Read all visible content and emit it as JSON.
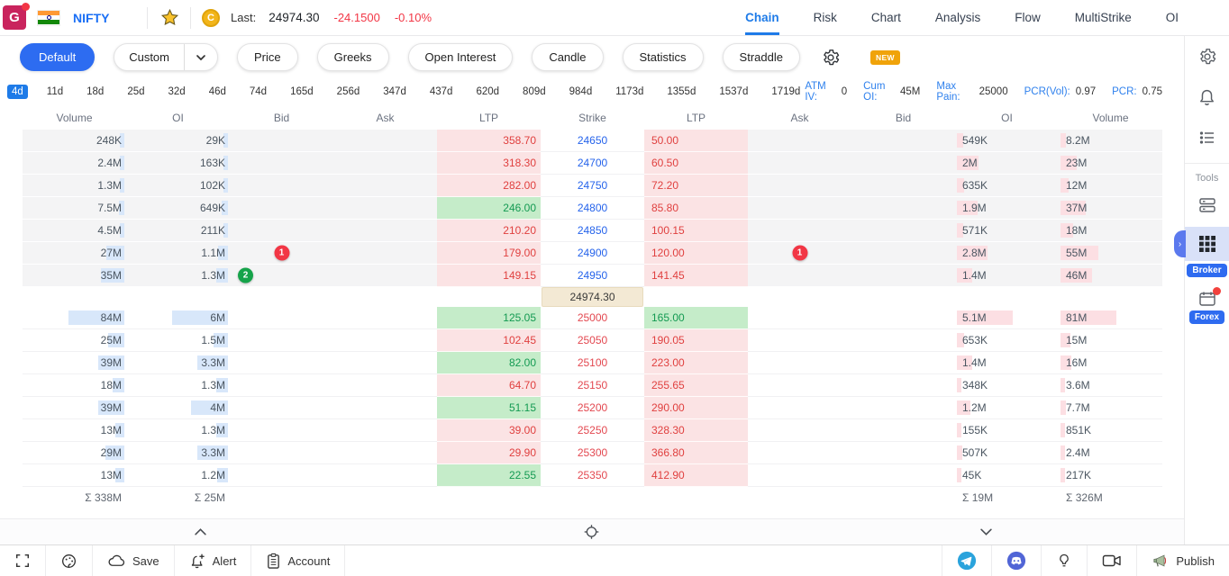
{
  "topbar": {
    "logo": "G",
    "symbol": "NIFTY",
    "coin_letter": "C",
    "last_label": "Last:",
    "last_price": "24974.30",
    "change": "-24.1500",
    "change_pct": "-0.10%",
    "tabs": [
      {
        "label": "Chain",
        "active": true
      },
      {
        "label": "Risk",
        "active": false
      },
      {
        "label": "Chart",
        "active": false
      },
      {
        "label": "Analysis",
        "active": false
      },
      {
        "label": "Flow",
        "active": false
      },
      {
        "label": "MultiStrike",
        "active": false
      },
      {
        "label": "OI",
        "active": false
      }
    ]
  },
  "toolbar": {
    "buttons": [
      {
        "label": "Default",
        "active": true
      },
      {
        "label": "Custom",
        "split": true
      },
      {
        "label": "Price"
      },
      {
        "label": "Greeks"
      },
      {
        "label": "Open Interest"
      },
      {
        "label": "Candle"
      },
      {
        "label": "Statistics"
      },
      {
        "label": "Straddle"
      }
    ],
    "new_badge": "NEW"
  },
  "expiry": {
    "days": [
      "4d",
      "11d",
      "18d",
      "25d",
      "32d",
      "46d",
      "74d",
      "165d",
      "256d",
      "347d",
      "437d",
      "620d",
      "809d",
      "984d",
      "1173d",
      "1355d",
      "1537d",
      "1719d"
    ],
    "active_day": "4d",
    "stats": [
      {
        "label": "ATM IV:",
        "value": "0"
      },
      {
        "label": "Cum OI:",
        "value": "45M"
      },
      {
        "label": "Max Pain:",
        "value": "25000"
      },
      {
        "label": "PCR(Vol):",
        "value": "0.97"
      },
      {
        "label": "PCR:",
        "value": "0.75"
      }
    ]
  },
  "chain": {
    "headers": [
      "Volume",
      "OI",
      "Bid",
      "Ask",
      "LTP",
      "Strike",
      "LTP",
      "Ask",
      "Bid",
      "OI",
      "Volume"
    ],
    "atm": {
      "value": "24974.30"
    },
    "rows": [
      {
        "strike": "24650",
        "call": {
          "volume": "248K",
          "oi": "29K",
          "bid": "",
          "ask": "",
          "ltp": "358.70",
          "ltp_up": false
        },
        "put": {
          "ltp": "50.00",
          "ltp_up": false,
          "ask": "",
          "bid": "",
          "oi": "549K",
          "volume": "8.2M"
        }
      },
      {
        "strike": "24700",
        "call": {
          "volume": "2.4M",
          "oi": "163K",
          "bid": "",
          "ask": "",
          "ltp": "318.30",
          "ltp_up": false
        },
        "put": {
          "ltp": "60.50",
          "ltp_up": false,
          "ask": "",
          "bid": "",
          "oi": "2M",
          "volume": "23M"
        }
      },
      {
        "strike": "24750",
        "call": {
          "volume": "1.3M",
          "oi": "102K",
          "bid": "",
          "ask": "",
          "ltp": "282.00",
          "ltp_up": false
        },
        "put": {
          "ltp": "72.20",
          "ltp_up": false,
          "ask": "",
          "bid": "",
          "oi": "635K",
          "volume": "12M"
        }
      },
      {
        "strike": "24800",
        "call": {
          "volume": "7.5M",
          "oi": "649K",
          "bid": "",
          "ask": "",
          "ltp": "246.00",
          "ltp_up": true
        },
        "put": {
          "ltp": "85.80",
          "ltp_up": false,
          "ask": "",
          "bid": "",
          "oi": "1.9M",
          "volume": "37M"
        }
      },
      {
        "strike": "24850",
        "call": {
          "volume": "4.5M",
          "oi": "211K",
          "bid": "",
          "ask": "",
          "ltp": "210.20",
          "ltp_up": false
        },
        "put": {
          "ltp": "100.15",
          "ltp_up": false,
          "ask": "",
          "bid": "",
          "oi": "571K",
          "volume": "18M"
        }
      },
      {
        "strike": "24900",
        "call": {
          "volume": "27M",
          "oi": "1.1M",
          "bid": "",
          "ask": "",
          "ltp": "179.00",
          "ltp_up": false,
          "bid_badge": {
            "text": "1",
            "color": "red"
          }
        },
        "put": {
          "ltp": "120.00",
          "ltp_up": false,
          "ask": "",
          "bid": "",
          "oi": "2.8M",
          "volume": "55M",
          "ask_badge": {
            "text": "1",
            "color": "red"
          }
        }
      },
      {
        "strike": "24950",
        "call": {
          "volume": "35M",
          "oi": "1.3M",
          "bid": "",
          "ask": "",
          "ltp": "149.15",
          "ltp_up": false,
          "oi_badge": {
            "text": "2",
            "color": "green"
          }
        },
        "put": {
          "ltp": "141.45",
          "ltp_up": false,
          "ask": "",
          "bid": "",
          "oi": "1.4M",
          "volume": "46M"
        }
      },
      {
        "strike": "25000",
        "call": {
          "volume": "84M",
          "oi": "6M",
          "bid": "",
          "ask": "",
          "ltp": "125.05",
          "ltp_up": true
        },
        "put": {
          "ltp": "165.00",
          "ltp_up": true,
          "ask": "",
          "bid": "",
          "oi": "5.1M",
          "volume": "81M"
        }
      },
      {
        "strike": "25050",
        "call": {
          "volume": "25M",
          "oi": "1.5M",
          "bid": "",
          "ask": "",
          "ltp": "102.45",
          "ltp_up": false
        },
        "put": {
          "ltp": "190.05",
          "ltp_up": false,
          "ask": "",
          "bid": "",
          "oi": "653K",
          "volume": "15M"
        }
      },
      {
        "strike": "25100",
        "call": {
          "volume": "39M",
          "oi": "3.3M",
          "bid": "",
          "ask": "",
          "ltp": "82.00",
          "ltp_up": true
        },
        "put": {
          "ltp": "223.00",
          "ltp_up": false,
          "ask": "",
          "bid": "",
          "oi": "1.4M",
          "volume": "16M"
        }
      },
      {
        "strike": "25150",
        "call": {
          "volume": "18M",
          "oi": "1.3M",
          "bid": "",
          "ask": "",
          "ltp": "64.70",
          "ltp_up": false
        },
        "put": {
          "ltp": "255.65",
          "ltp_up": false,
          "ask": "",
          "bid": "",
          "oi": "348K",
          "volume": "3.6M"
        }
      },
      {
        "strike": "25200",
        "call": {
          "volume": "39M",
          "oi": "4M",
          "bid": "",
          "ask": "",
          "ltp": "51.15",
          "ltp_up": true
        },
        "put": {
          "ltp": "290.00",
          "ltp_up": false,
          "ask": "",
          "bid": "",
          "oi": "1.2M",
          "volume": "7.7M"
        }
      },
      {
        "strike": "25250",
        "call": {
          "volume": "13M",
          "oi": "1.3M",
          "bid": "",
          "ask": "",
          "ltp": "39.00",
          "ltp_up": false
        },
        "put": {
          "ltp": "328.30",
          "ltp_up": false,
          "ask": "",
          "bid": "",
          "oi": "155K",
          "volume": "851K"
        }
      },
      {
        "strike": "25300",
        "call": {
          "volume": "29M",
          "oi": "3.3M",
          "bid": "",
          "ask": "",
          "ltp": "29.90",
          "ltp_up": false
        },
        "put": {
          "ltp": "366.80",
          "ltp_up": false,
          "ask": "",
          "bid": "",
          "oi": "507K",
          "volume": "2.4M"
        }
      },
      {
        "strike": "25350",
        "call": {
          "volume": "13M",
          "oi": "1.2M",
          "bid": "",
          "ask": "",
          "ltp": "22.55",
          "ltp_up": true
        },
        "put": {
          "ltp": "412.90",
          "ltp_up": false,
          "ask": "",
          "bid": "",
          "oi": "45K",
          "volume": "217K"
        }
      }
    ],
    "totals": {
      "call_volume": "Σ 338M",
      "call_oi": "Σ 25M",
      "put_oi": "Σ 19M",
      "put_volume": "Σ 326M"
    }
  },
  "sidebar": {
    "top_icons": [
      {
        "name": "settings",
        "icon": "gear"
      },
      {
        "name": "notifications",
        "icon": "bell"
      },
      {
        "name": "watchlist",
        "icon": "list"
      }
    ],
    "tools_label": "Tools",
    "tools": [
      {
        "name": "layouts",
        "icon": "layers"
      },
      {
        "name": "apps-grid",
        "icon": "grid",
        "active": true,
        "handle": true,
        "badge": "Broker"
      },
      {
        "name": "calendar",
        "icon": "calendar",
        "dot": true,
        "badge": "Forex"
      }
    ]
  },
  "scrollstrip": {
    "icons": [
      {
        "name": "scroll-up",
        "icon": "chevup"
      },
      {
        "name": "pan-handle",
        "icon": "move"
      },
      {
        "name": "scroll-down",
        "icon": "chevdown"
      }
    ]
  },
  "bottombar": {
    "left": [
      {
        "name": "fullscreen",
        "icon": "fullscreen",
        "label": ""
      },
      {
        "name": "theme",
        "icon": "palette",
        "label": ""
      },
      {
        "name": "save",
        "icon": "cloud",
        "label": "Save"
      },
      {
        "name": "alert",
        "icon": "alertbell",
        "label": "Alert"
      },
      {
        "name": "account",
        "icon": "clipboard",
        "label": "Account"
      }
    ],
    "right": [
      {
        "name": "telegram",
        "icon": "telegram",
        "label": ""
      },
      {
        "name": "discord",
        "icon": "discord",
        "label": ""
      },
      {
        "name": "ideas",
        "icon": "bulb",
        "label": ""
      },
      {
        "name": "video",
        "icon": "camera",
        "label": ""
      },
      {
        "name": "publish",
        "icon": "megaphone",
        "label": "Publish"
      }
    ]
  },
  "colors": {
    "accent_blue": "#1e7be8",
    "brand_red": "#c9245d",
    "negative": "#f23645",
    "positive": "#149a52",
    "ltp_down_bg": "#fbe3e4",
    "ltp_up_bg": "#c5ecc9",
    "atm_bg": "#f3e9d4",
    "call_depth_bar": "#d8e7fa",
    "put_depth_bar": "#fcdfe3",
    "strike_itm": "#2563eb",
    "strike_otm": "#e34850"
  }
}
